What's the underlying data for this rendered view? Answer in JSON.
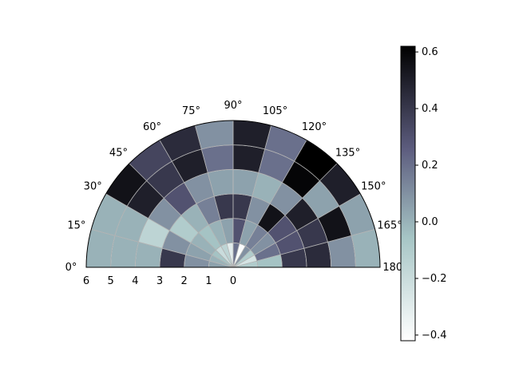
{
  "chart_data": {
    "type": "heatmap",
    "subtype": "polar-half-mesh",
    "theta_range_deg": [
      0,
      180
    ],
    "r_range": [
      0,
      6
    ],
    "theta_tick_labels": [
      "0°",
      "15°",
      "30°",
      "45°",
      "60°",
      "75°",
      "90°",
      "105°",
      "120°",
      "135°",
      "150°",
      "165°",
      "180°"
    ],
    "r_tick_labels": [
      "6",
      "5",
      "4",
      "3",
      "2",
      "1",
      "0"
    ],
    "r_tick_values": [
      6,
      5,
      4,
      3,
      2,
      1,
      0
    ],
    "grid": true,
    "colormap": "bone_r",
    "colorbar": {
      "min": -0.42,
      "max": 0.62,
      "tick_values": [
        0.6,
        0.4,
        0.2,
        0.0,
        -0.2,
        -0.4
      ],
      "tick_labels": [
        "0.6",
        "0.4",
        "0.2",
        "0.0",
        "−0.2",
        "−0.4"
      ],
      "position": "right"
    },
    "theta_edges_deg": [
      0,
      15,
      30,
      45,
      60,
      75,
      90,
      105,
      120,
      135,
      150,
      165,
      180
    ],
    "r_edges": [
      0,
      1,
      2,
      3,
      4,
      5,
      6
    ],
    "values": [
      [
        0.05,
        0.0,
        -0.05,
        -0.2,
        -0.15,
        -0.3,
        0.2,
        -0.4,
        0.1,
        -0.1,
        -0.25,
        -0.1
      ],
      [
        0.1,
        0.05,
        0.0,
        -0.05,
        0.0,
        0.05,
        0.3,
        0.05,
        0.15,
        0.1,
        0.2,
        -0.05
      ],
      [
        0.4,
        0.1,
        -0.1,
        0.0,
        0.15,
        0.4,
        0.4,
        0.1,
        0.55,
        0.3,
        0.3,
        0.4
      ],
      [
        0.0,
        -0.15,
        0.1,
        0.3,
        0.1,
        0.05,
        0.05,
        0.0,
        0.1,
        0.5,
        0.4,
        0.45
      ],
      [
        0.0,
        0.0,
        0.5,
        0.4,
        0.5,
        0.2,
        0.5,
        0.2,
        0.6,
        0.05,
        0.55,
        0.1
      ],
      [
        0.0,
        0.0,
        0.55,
        0.35,
        0.45,
        0.1,
        0.5,
        0.2,
        0.62,
        0.5,
        0.05,
        0.0
      ]
    ]
  }
}
